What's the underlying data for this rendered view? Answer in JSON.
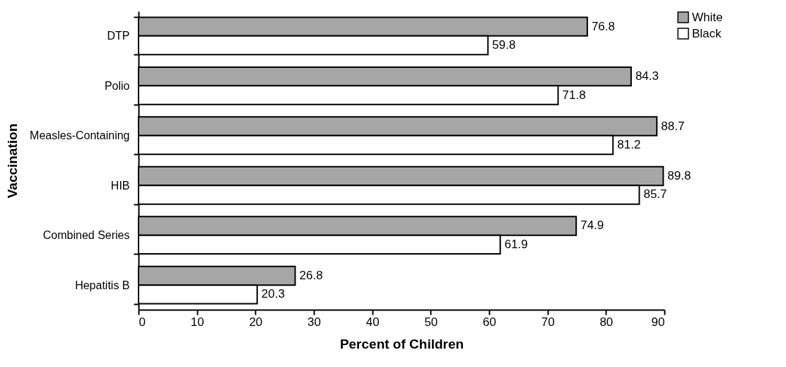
{
  "chart_data": {
    "type": "bar",
    "orientation": "horizontal",
    "xlabel": "Percent of Children",
    "ylabel": "Vaccination",
    "categories": [
      "DTP",
      "Polio",
      "Measles-Containing",
      "HIB",
      "Combined Series",
      "Hepatitis B"
    ],
    "series": [
      {
        "name": "White",
        "color": "#a6a6a6",
        "values": [
          76.8,
          84.3,
          88.7,
          89.8,
          74.9,
          26.8
        ]
      },
      {
        "name": "Black",
        "color": "#ffffff",
        "values": [
          59.8,
          71.8,
          81.2,
          85.7,
          61.9,
          20.3
        ]
      }
    ],
    "xlim": [
      0,
      90
    ],
    "xticks": [
      0,
      10,
      20,
      30,
      40,
      50,
      60,
      70,
      80,
      90
    ],
    "data_labels": true,
    "legend": "top right",
    "grid": false
  }
}
